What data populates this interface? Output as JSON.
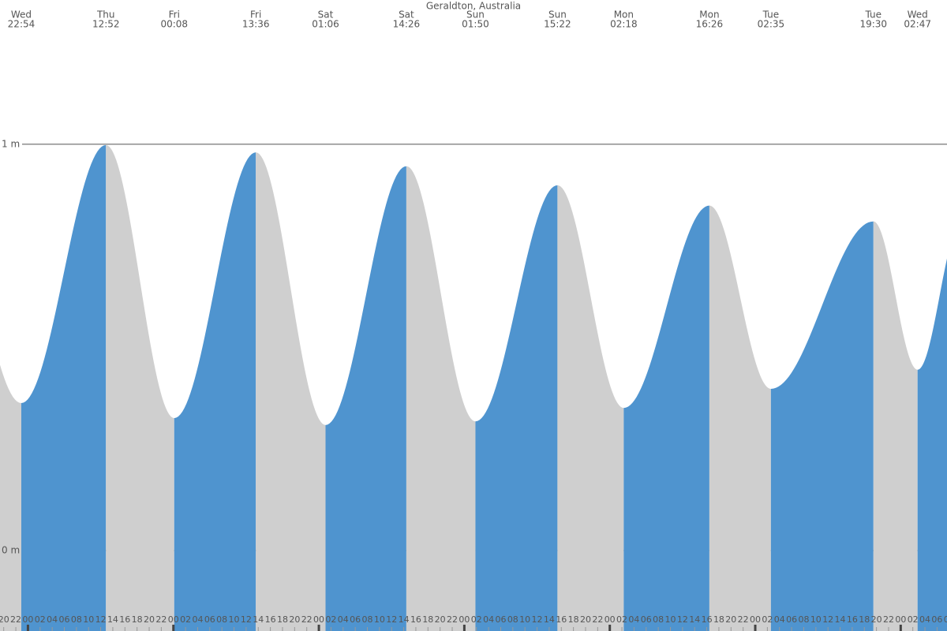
{
  "chart_data": {
    "type": "tide",
    "title": "Geraldton, Australia",
    "extremes": [
      {
        "day": "Wed",
        "time": "22:54",
        "height": 0.363
      },
      {
        "day": "Thu",
        "time": "12:52",
        "height": 0.998
      },
      {
        "day": "Fri",
        "time": "00:08",
        "height": 0.326
      },
      {
        "day": "Fri",
        "time": "13:36",
        "height": 0.98
      },
      {
        "day": "Sat",
        "time": "01:06",
        "height": 0.309
      },
      {
        "day": "Sat",
        "time": "14:26",
        "height": 0.946
      },
      {
        "day": "Sun",
        "time": "01:50",
        "height": 0.318
      },
      {
        "day": "Sun",
        "time": "15:22",
        "height": 0.899
      },
      {
        "day": "Mon",
        "time": "02:18",
        "height": 0.351
      },
      {
        "day": "Mon",
        "time": "16:26",
        "height": 0.849
      },
      {
        "day": "Tue",
        "time": "02:35",
        "height": 0.398
      },
      {
        "day": "Tue",
        "time": "19:30",
        "height": 0.81
      },
      {
        "day": "Wed",
        "time": "02:47",
        "height": 0.445
      }
    ],
    "ylim": [
      -0.198,
      1.355
    ],
    "yticks": [
      {
        "value": 0,
        "label": "0 m"
      },
      {
        "value": 1,
        "label": "1 m"
      }
    ],
    "hour_labels": [
      "00",
      "02",
      "04",
      "06",
      "08",
      "10",
      "12",
      "14",
      "16",
      "18",
      "20",
      "22"
    ],
    "rising_color": "#4f94cf",
    "falling_color": "#cfcfcf"
  }
}
